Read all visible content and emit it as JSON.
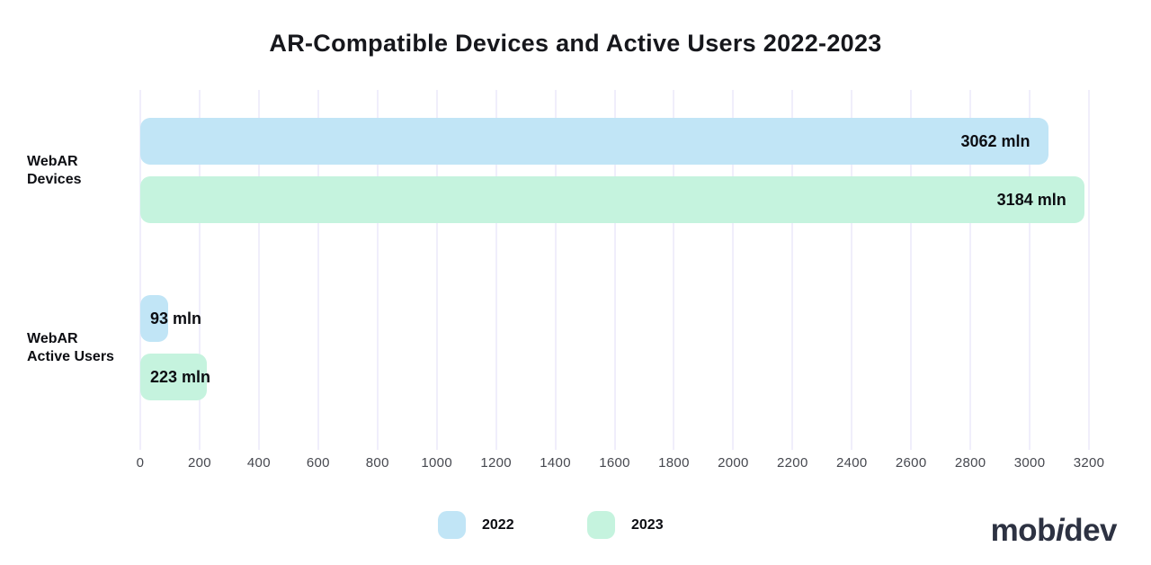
{
  "title": "AR-Compatible Devices and Active Users 2022-2023",
  "chart_data": {
    "type": "bar",
    "orientation": "horizontal",
    "title": "AR-Compatible Devices and Active Users 2022-2023",
    "categories": [
      "WebAR Devices",
      "WebAR Active Users"
    ],
    "series": [
      {
        "name": "2022",
        "color": "#c1e5f6",
        "values": [
          3062,
          93
        ],
        "labels": [
          "3062 mln",
          "93 mln"
        ]
      },
      {
        "name": "2023",
        "color": "#c5f3de",
        "values": [
          3184,
          223
        ],
        "labels": [
          "3184 mln",
          "223 mln"
        ]
      }
    ],
    "unit": "mln",
    "xlabel": "",
    "ylabel": "",
    "xlim": [
      0,
      3200
    ],
    "xticks": [
      0,
      200,
      400,
      600,
      800,
      1000,
      1200,
      1400,
      1600,
      1800,
      2000,
      2200,
      2400,
      2600,
      2800,
      3000,
      3200
    ],
    "grid": "vertical",
    "gridline_color": "#f0eefb",
    "legend_position": "bottom"
  },
  "footer": {
    "logo_parts": [
      "mob",
      "i",
      "dev"
    ]
  }
}
